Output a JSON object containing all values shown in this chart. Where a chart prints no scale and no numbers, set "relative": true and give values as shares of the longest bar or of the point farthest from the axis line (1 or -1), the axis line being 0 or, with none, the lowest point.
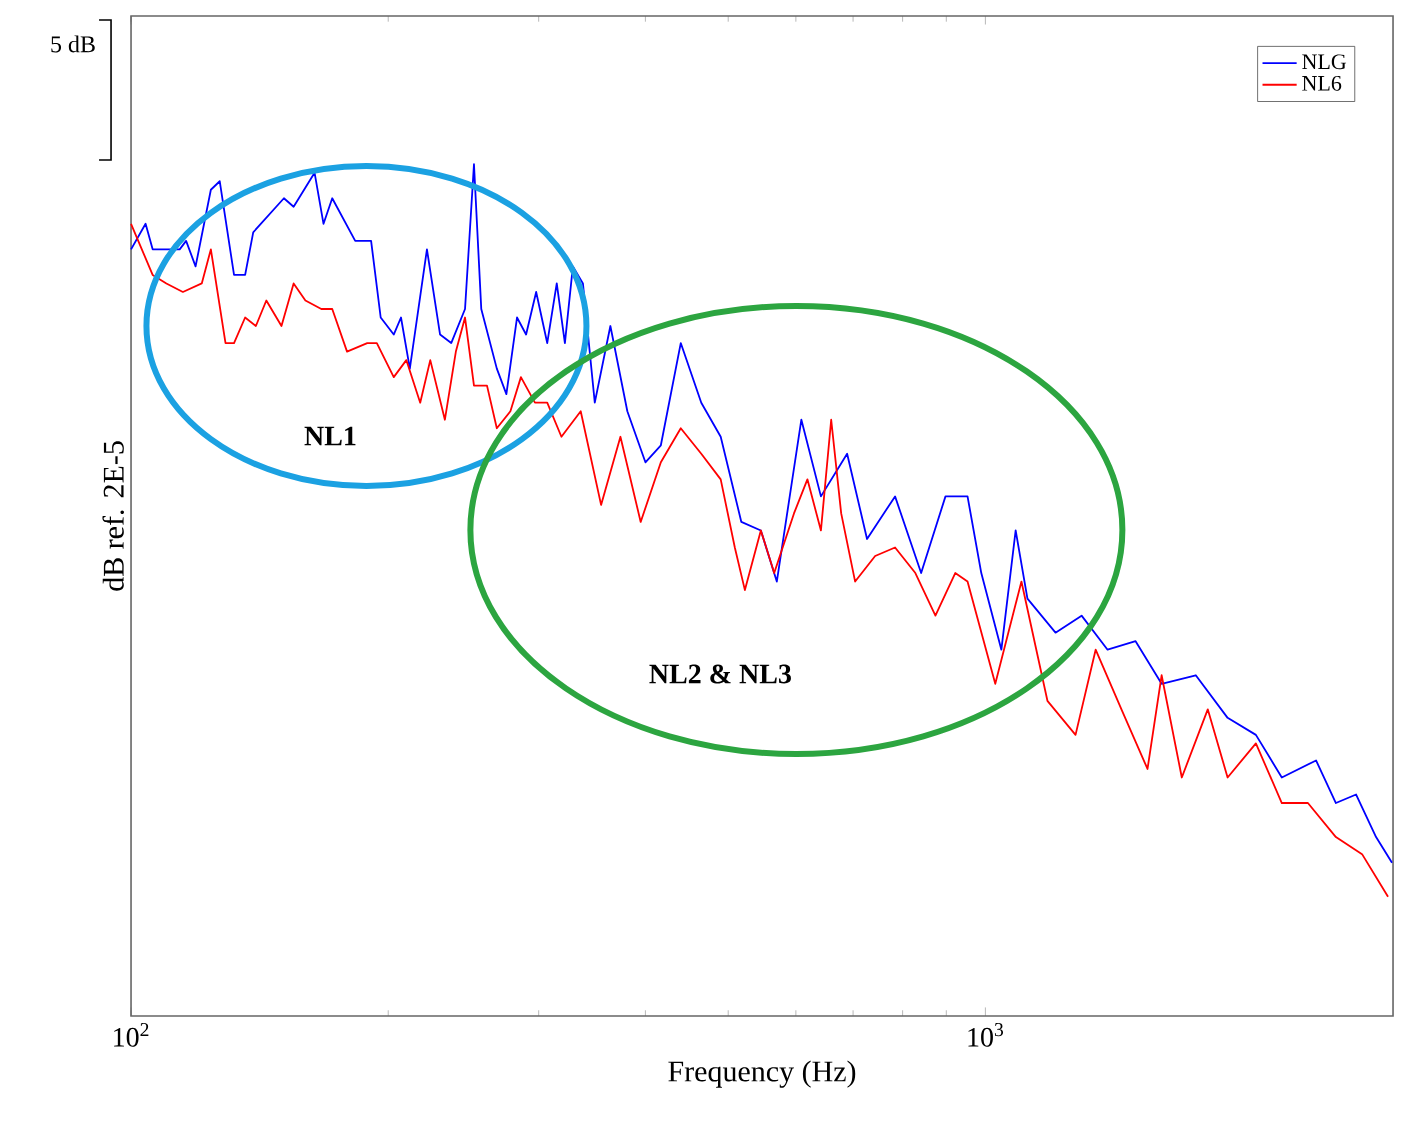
{
  "chart_data": {
    "type": "line",
    "relative": true,
    "log": "x",
    "xlabel": "Frequency (Hz)",
    "ylabel": "dB ref. 2E-5",
    "xlim": [
      100,
      3000
    ],
    "xticks": [
      {
        "value": 100,
        "label": "10$^{2}$"
      },
      {
        "value": 1000,
        "label": "10$^{3}$"
      }
    ],
    "legend": "top right",
    "annotations": [
      "5 dB",
      "NL1",
      "NL2 & NL3"
    ],
    "series": [
      {
        "name": "NLG",
        "color": "#0000ff",
        "x": [
          100,
          104,
          106,
          114,
          116,
          119,
          124,
          127,
          132,
          136,
          139,
          151,
          155,
          164,
          168,
          172,
          183,
          191,
          196,
          203,
          207,
          212,
          222,
          230,
          237,
          246,
          252,
          257,
          268,
          275,
          283,
          290,
          298,
          307,
          315,
          322,
          329,
          338,
          349,
          364,
          381,
          400,
          417,
          440,
          465,
          490,
          518,
          546,
          570,
          609,
          642,
          689,
          727,
          784,
          841,
          898,
          953,
          989,
          1044,
          1085,
          1120,
          1208,
          1296,
          1390,
          1499,
          1608,
          1763,
          1921,
          2073,
          2223,
          2438,
          2572,
          2716,
          2866,
          2992
        ],
        "values": [
          0.9,
          0.93,
          0.9,
          0.9,
          0.91,
          0.88,
          0.97,
          0.98,
          0.87,
          0.87,
          0.92,
          0.96,
          0.95,
          0.99,
          0.93,
          0.96,
          0.91,
          0.91,
          0.82,
          0.8,
          0.82,
          0.76,
          0.9,
          0.8,
          0.79,
          0.83,
          1.0,
          0.83,
          0.76,
          0.73,
          0.82,
          0.8,
          0.85,
          0.79,
          0.86,
          0.79,
          0.88,
          0.86,
          0.72,
          0.81,
          0.71,
          0.65,
          0.67,
          0.79,
          0.72,
          0.68,
          0.58,
          0.57,
          0.51,
          0.7,
          0.61,
          0.66,
          0.56,
          0.61,
          0.52,
          0.61,
          0.61,
          0.52,
          0.43,
          0.57,
          0.49,
          0.45,
          0.47,
          0.43,
          0.44,
          0.39,
          0.4,
          0.35,
          0.33,
          0.28,
          0.3,
          0.25,
          0.26,
          0.21,
          0.18
        ]
      },
      {
        "name": "NL6",
        "color": "#ff0000",
        "x": [
          100,
          106,
          110,
          115,
          121,
          124,
          129,
          132,
          136,
          140,
          144,
          150,
          155,
          160,
          167,
          172,
          179,
          189,
          194,
          203,
          210,
          218,
          224,
          233,
          240,
          246,
          252,
          261,
          268,
          278,
          286,
          297,
          307,
          319,
          336,
          355,
          374,
          395,
          417,
          440,
          465,
          490,
          509,
          523,
          546,
          566,
          597,
          619,
          642,
          660,
          678,
          704,
          743,
          784,
          828,
          874,
          922,
          953,
          1027,
          1102,
          1182,
          1275,
          1346,
          1443,
          1548,
          1608,
          1698,
          1821,
          1921,
          2073,
          2223,
          2385,
          2572,
          2760,
          2960
        ],
        "values": [
          0.93,
          0.87,
          0.86,
          0.85,
          0.86,
          0.9,
          0.79,
          0.79,
          0.82,
          0.81,
          0.84,
          0.81,
          0.86,
          0.84,
          0.83,
          0.83,
          0.78,
          0.79,
          0.79,
          0.75,
          0.77,
          0.72,
          0.77,
          0.7,
          0.78,
          0.82,
          0.74,
          0.74,
          0.69,
          0.71,
          0.75,
          0.72,
          0.72,
          0.68,
          0.71,
          0.6,
          0.68,
          0.58,
          0.65,
          0.69,
          0.66,
          0.63,
          0.55,
          0.5,
          0.57,
          0.52,
          0.59,
          0.63,
          0.57,
          0.7,
          0.59,
          0.51,
          0.54,
          0.55,
          0.52,
          0.47,
          0.52,
          0.51,
          0.39,
          0.51,
          0.37,
          0.33,
          0.43,
          0.36,
          0.29,
          0.4,
          0.28,
          0.36,
          0.28,
          0.32,
          0.25,
          0.25,
          0.21,
          0.19,
          0.14
        ]
      }
    ]
  }
}
